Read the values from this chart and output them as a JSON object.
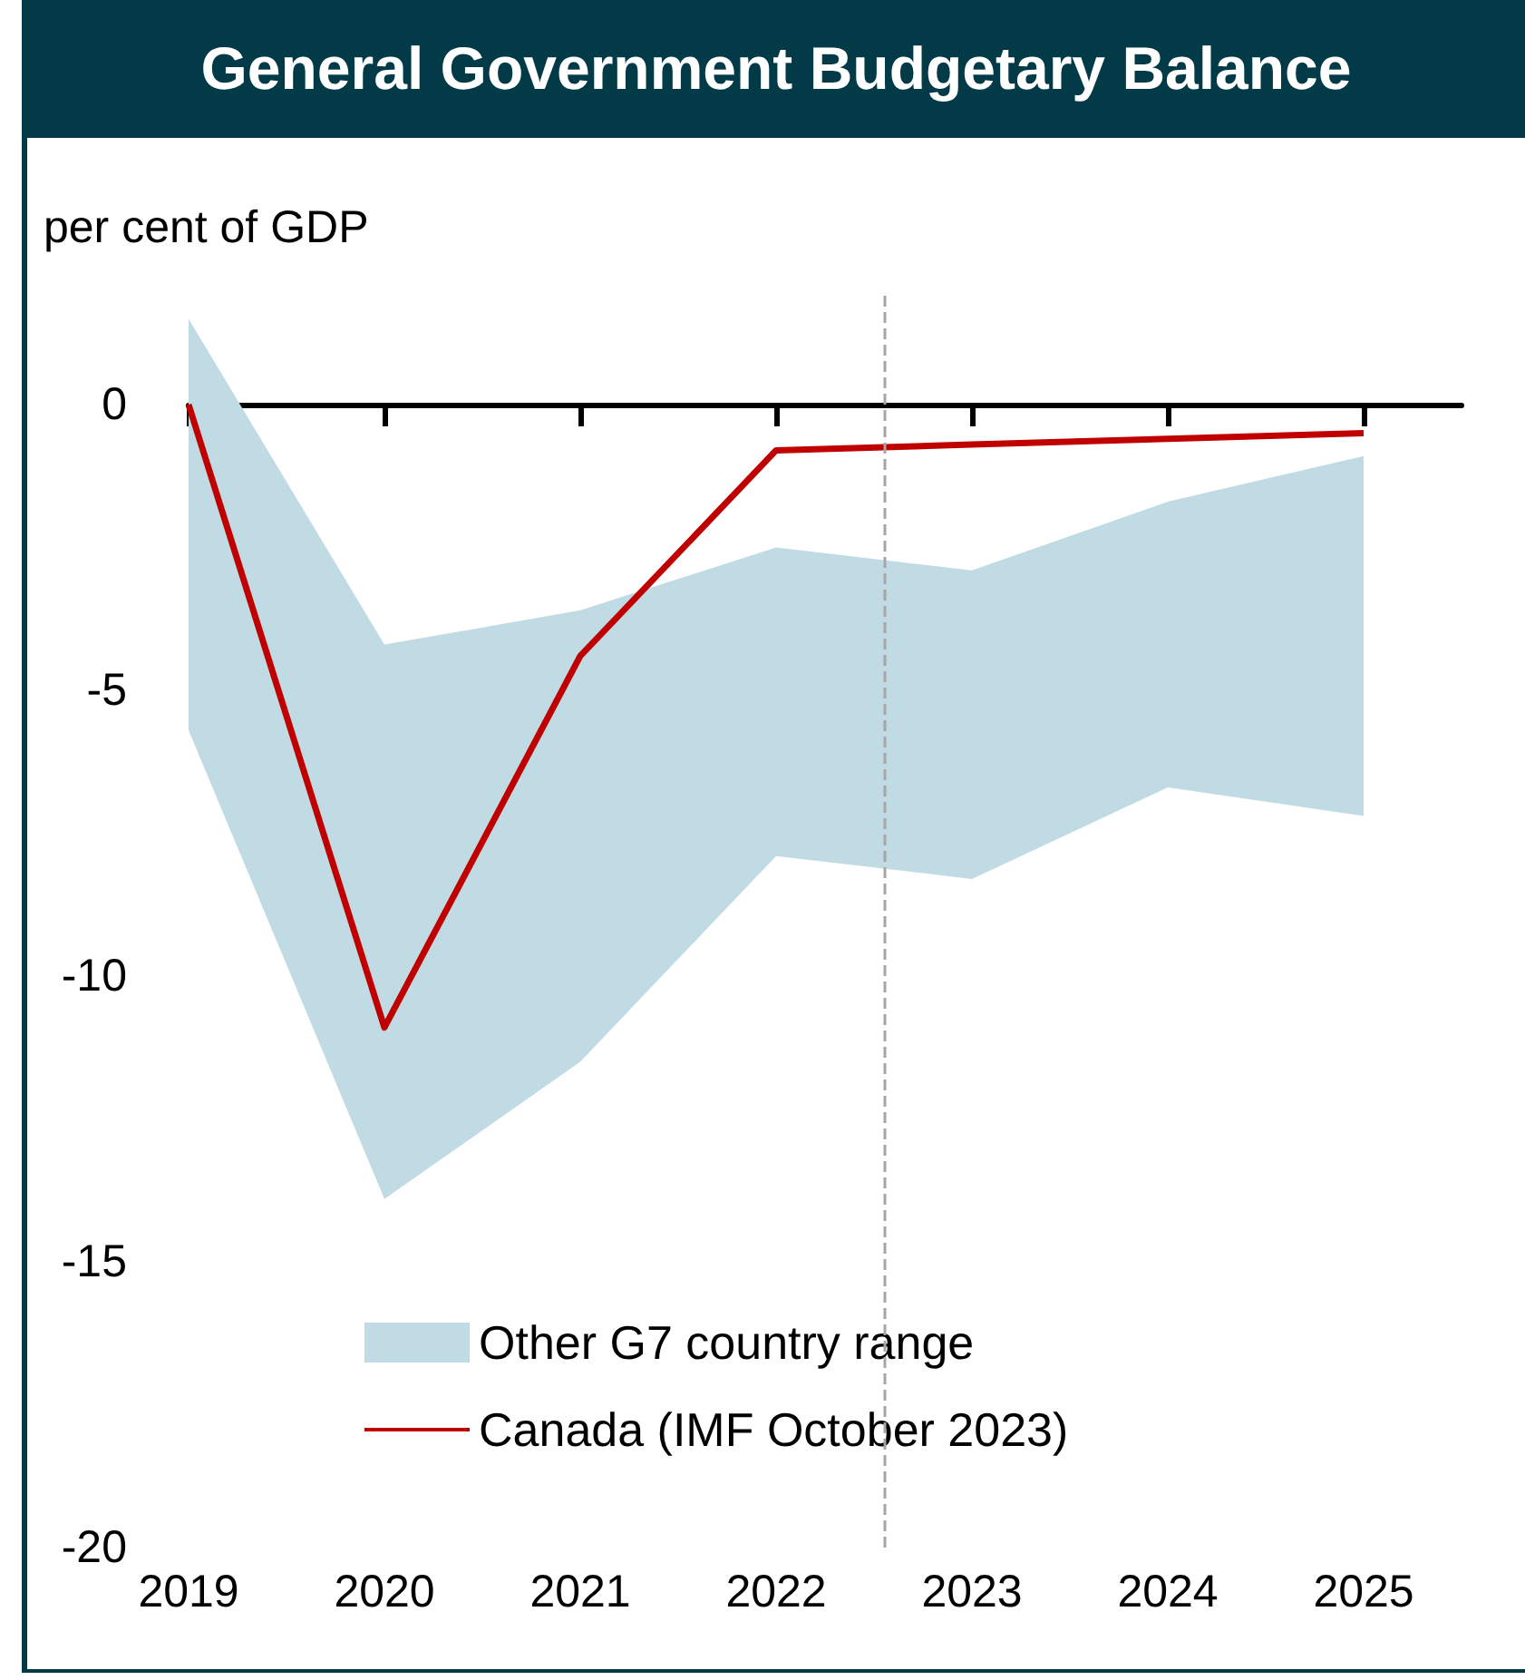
{
  "chart_data": {
    "type": "line",
    "title": "General Government Budgetary Balance",
    "ylabel": "per cent of GDP",
    "x": [
      2019,
      2020,
      2021,
      2022,
      2023,
      2024,
      2025
    ],
    "xlim": [
      2019,
      2025.5
    ],
    "xticks": [
      2019,
      2020,
      2021,
      2022,
      2023,
      2024,
      2025
    ],
    "ylim": [
      -20,
      2
    ],
    "yticks": [
      0,
      -5,
      -10,
      -15,
      -20
    ],
    "series": [
      {
        "name": "Other G7 country range",
        "type": "area",
        "color": "#c0dbe3",
        "values": [
          null,
          null,
          null,
          null,
          null,
          null,
          null
        ],
        "lower": [
          -5.7,
          -13.9,
          -11.5,
          -7.9,
          -8.3,
          -6.7,
          -7.2
        ],
        "upper": [
          1.5,
          -4.2,
          -3.6,
          -2.5,
          -2.9,
          -1.7,
          -0.9
        ]
      },
      {
        "name": "Canada (IMF October 2023)",
        "color": "#c00000",
        "values": [
          0,
          -10.9,
          -4.4,
          -0.8,
          -0.7,
          -0.6,
          -0.5
        ]
      }
    ],
    "ref_lines": [
      {
        "axis": "x",
        "value": 2022.55,
        "color": "#a6a6a6",
        "line_style": "dashed"
      }
    ],
    "legend": "bottom left",
    "marker": "none",
    "line_style": "solid"
  }
}
